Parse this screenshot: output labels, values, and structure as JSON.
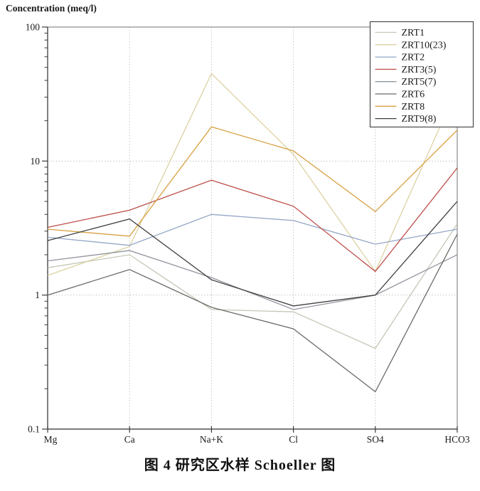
{
  "figure": {
    "y_axis_title": "Concentration (meq/l)",
    "caption": "图 4  研究区水样 Schoeller 图"
  },
  "chart_data": {
    "type": "line",
    "title": "Concentration (meq/l)",
    "xlabel": "",
    "ylabel": "Concentration (meq/l)",
    "y_scale": "log",
    "ylim": [
      0.1,
      100
    ],
    "y_major_tick_labels": [
      "100",
      "10",
      "1",
      "0.1"
    ],
    "categories": [
      "Mg",
      "Ca",
      "Na+K",
      "Cl",
      "SO4",
      "HCO3"
    ],
    "grid": "dotted",
    "legend_position": "top-right-inside",
    "series": [
      {
        "name": "ZRT1",
        "color": "#c3c7b6",
        "values": [
          1.6,
          2.0,
          0.78,
          0.75,
          0.4,
          3.4
        ]
      },
      {
        "name": "ZRT10(23)",
        "color": "#dcd2a2",
        "values": [
          1.4,
          2.3,
          45,
          11.2,
          1.5,
          35
        ]
      },
      {
        "name": "ZRT2",
        "color": "#93a6c6",
        "values": [
          2.7,
          2.35,
          4.0,
          3.6,
          2.4,
          3.1
        ]
      },
      {
        "name": "ZRT3(5)",
        "color": "#bc4e49",
        "values": [
          3.2,
          4.3,
          7.2,
          4.6,
          1.5,
          8.9
        ]
      },
      {
        "name": "ZRT5(7)",
        "color": "#90959d",
        "values": [
          1.8,
          2.15,
          1.35,
          0.78,
          1.0,
          2.0
        ]
      },
      {
        "name": "ZRT6",
        "color": "#6e6a66",
        "values": [
          1.0,
          1.55,
          0.81,
          0.56,
          0.19,
          2.85
        ]
      },
      {
        "name": "ZRT8",
        "color": "#d8a142",
        "values": [
          3.1,
          2.75,
          18,
          11.9,
          4.2,
          17
        ]
      },
      {
        "name": "ZRT9(8)",
        "color": "#3f3f3f",
        "values": [
          2.55,
          3.7,
          1.3,
          0.83,
          1.0,
          5.0
        ]
      }
    ],
    "colors": {
      "plot_border": "#8a8a8a",
      "axis": "#3c3c3c",
      "grid": "#c4c4c4",
      "legend_border": "#4a4a4a",
      "text": "#1a1a1a"
    }
  }
}
